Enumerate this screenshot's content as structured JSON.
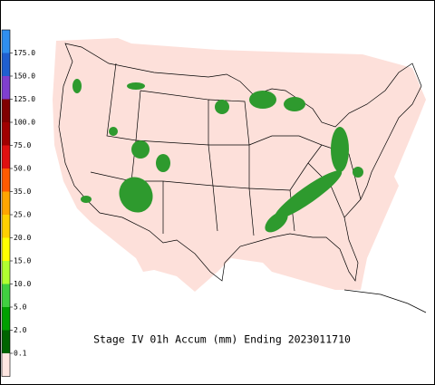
{
  "legend": {
    "labels": [
      "175.0",
      "150.0",
      "125.0",
      "100.0",
      "75.0",
      "50.0",
      "35.0",
      "25.0",
      "20.0",
      "15.0",
      "10.0",
      "5.0",
      "2.0",
      "0.1"
    ],
    "colors": [
      "#2f8fef",
      "#1f5fd0",
      "#7f3fcf",
      "#800000",
      "#a00000",
      "#e01010",
      "#ff5a00",
      "#ffa500",
      "#ffd000",
      "#ffff00",
      "#b0ff30",
      "#40d040",
      "#00a000",
      "#006400",
      "#ffe6e1"
    ]
  },
  "caption": "Stage IV 01h Accum (mm) Ending 2023011710"
}
